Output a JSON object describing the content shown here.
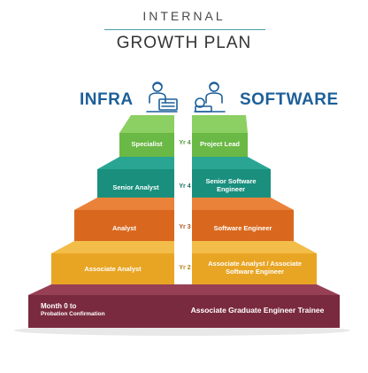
{
  "header": {
    "overline": "INTERNAL",
    "title": "GROWTH PLAN"
  },
  "tracks": {
    "left": "INFRA",
    "right": "SOFTWARE",
    "left_icon": "engineer-at-server-icon",
    "right_icon": "engineer-at-laptop-icon"
  },
  "levels": [
    {
      "left": "Specialist",
      "year": "Yr 4",
      "right": "Project Lead",
      "color": "#6ab845"
    },
    {
      "left": "Senior Analyst",
      "year": "Yr 4",
      "right": "Senior Software Engineer",
      "color": "#1a8f7e"
    },
    {
      "left": "Analyst",
      "year": "Yr 3",
      "right": "Software Engineer",
      "color": "#d9681e"
    },
    {
      "left": "Associate Analyst",
      "year": "Yr 2",
      "right": "Associate Analyst / Associate Software Engineer",
      "color": "#e8a524"
    }
  ],
  "base": {
    "left_line1": "Month 0 to",
    "left_line2": "Probation Confirmation",
    "right": "Associate Graduate Engineer Trainee",
    "color": "#7a2a3e"
  },
  "colors": {
    "title_rule": "#4a9fa8",
    "track_label": "#1d5f99",
    "center_divider": "#ffffff"
  }
}
